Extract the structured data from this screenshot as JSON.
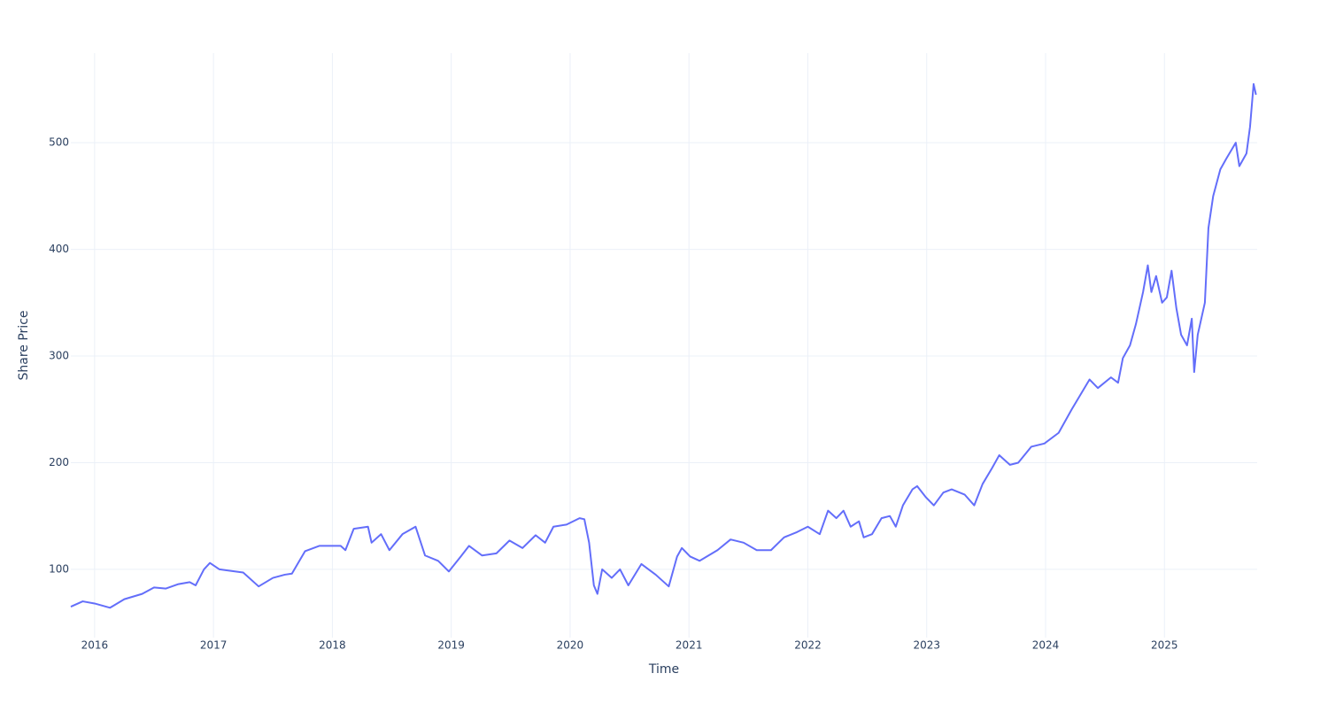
{
  "chart_data": {
    "type": "line",
    "xlabel": "Time",
    "ylabel": "Share Price",
    "color": "#636efa",
    "grid": true,
    "x": [
      2015.8,
      2015.9,
      2016.0,
      2016.13,
      2016.25,
      2016.4,
      2016.5,
      2016.6,
      2016.7,
      2016.8,
      2016.85,
      2016.92,
      2016.97,
      2017.05,
      2017.25,
      2017.38,
      2017.5,
      2017.6,
      2017.66,
      2017.77,
      2017.89,
      2018.07,
      2018.11,
      2018.18,
      2018.3,
      2018.33,
      2018.41,
      2018.48,
      2018.59,
      2018.7,
      2018.78,
      2018.89,
      2018.98,
      2019.08,
      2019.15,
      2019.26,
      2019.38,
      2019.49,
      2019.6,
      2019.71,
      2019.79,
      2019.86,
      2019.97,
      2020.08,
      2020.12,
      2020.16,
      2020.2,
      2020.23,
      2020.27,
      2020.35,
      2020.42,
      2020.49,
      2020.6,
      2020.72,
      2020.83,
      2020.9,
      2020.94,
      2021.01,
      2021.09,
      2021.24,
      2021.35,
      2021.46,
      2021.57,
      2021.69,
      2021.8,
      2021.91,
      2022.0,
      2022.1,
      2022.17,
      2022.24,
      2022.3,
      2022.36,
      2022.43,
      2022.47,
      2022.54,
      2022.62,
      2022.69,
      2022.74,
      2022.8,
      2022.88,
      2022.92,
      2022.99,
      2023.06,
      2023.14,
      2023.21,
      2023.32,
      2023.4,
      2023.47,
      2023.55,
      2023.61,
      2023.7,
      2023.77,
      2023.88,
      2023.99,
      2024.11,
      2024.22,
      2024.37,
      2024.44,
      2024.55,
      2024.61,
      2024.65,
      2024.71,
      2024.76,
      2024.82,
      2024.86,
      2024.89,
      2024.93,
      2024.98,
      2025.02,
      2025.06,
      2025.1,
      2025.14,
      2025.19,
      2025.23,
      2025.25,
      2025.28,
      2025.34,
      2025.37,
      2025.41,
      2025.47,
      2025.52,
      2025.6,
      2025.63,
      2025.69,
      2025.72,
      2025.75,
      2025.77
    ],
    "values": [
      65,
      70,
      68,
      64,
      72,
      77,
      83,
      82,
      86,
      88,
      85,
      100,
      106,
      100,
      97,
      84,
      92,
      95,
      96,
      117,
      122,
      122,
      118,
      138,
      140,
      125,
      133,
      118,
      133,
      140,
      113,
      108,
      98,
      112,
      122,
      113,
      115,
      127,
      120,
      132,
      125,
      140,
      142,
      148,
      147,
      125,
      85,
      77,
      100,
      92,
      100,
      85,
      105,
      95,
      84,
      112,
      120,
      112,
      108,
      118,
      128,
      125,
      118,
      118,
      130,
      135,
      140,
      133,
      155,
      148,
      155,
      140,
      145,
      130,
      133,
      148,
      150,
      140,
      160,
      175,
      178,
      168,
      160,
      172,
      175,
      170,
      160,
      180,
      195,
      207,
      198,
      200,
      215,
      218,
      228,
      250,
      278,
      270,
      280,
      275,
      298,
      310,
      330,
      360,
      385,
      360,
      375,
      350,
      355,
      380,
      345,
      320,
      310,
      335,
      285,
      320,
      350,
      420,
      450,
      475,
      485,
      500,
      478,
      490,
      515,
      555,
      545
    ],
    "xlim": [
      2015.8,
      2025.78
    ],
    "xticks": [
      2016,
      2017,
      2018,
      2019,
      2020,
      2021,
      2022,
      2023,
      2024,
      2025
    ],
    "ylim": [
      36,
      584
    ],
    "yticks": [
      100,
      200,
      300,
      400,
      500
    ]
  }
}
